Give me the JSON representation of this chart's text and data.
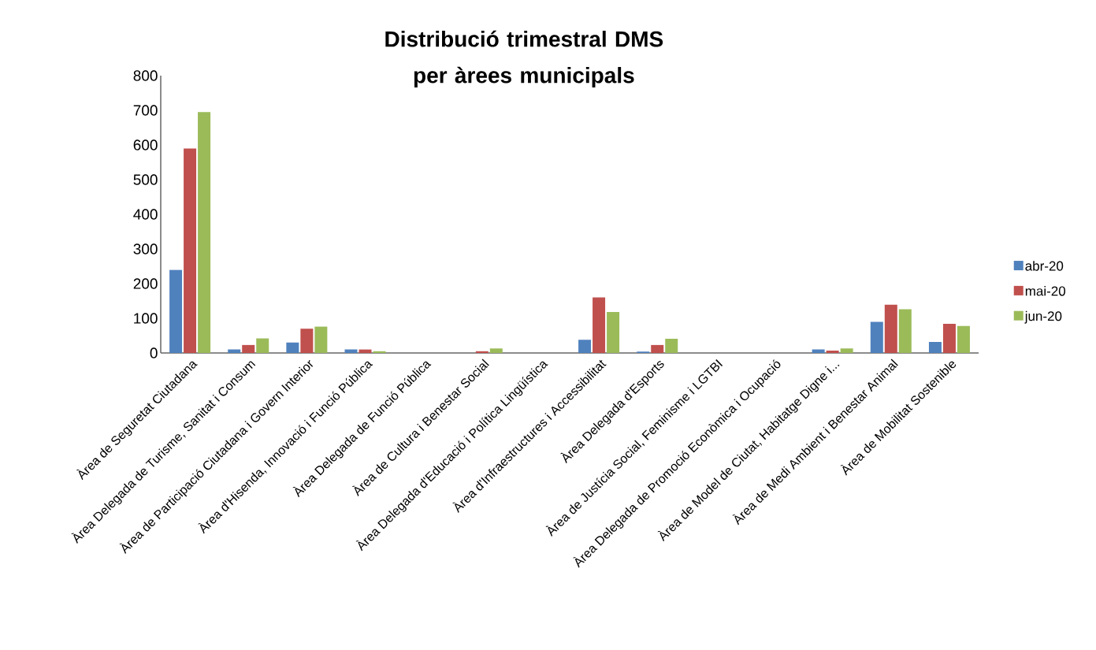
{
  "chart_data": {
    "type": "bar",
    "title": "Distribució trimestral DMS per àrees municipals",
    "categories": [
      "Àrea de Seguretat Ciutadana",
      "Àrea Delegada de Turisme, Sanitat i Consum",
      "Àrea de Participació Ciutadana i Govern Interior",
      "Àrea d'Hisenda, Innovació i Funció Pública",
      "Àrea Delegada de Funció Pública",
      "Àrea de Cultura i Benestar Social",
      "Àrea Delegada d'Educació i Política Lingüística",
      "Àrea d'Infraestructures i Accessibilitat",
      "Àrea Delegada d'Esports",
      "Àrea de Justícia Social, Feminisme i LGTBI",
      "Àrea Delegada de Promoció Econòmica i Ocupació",
      "Àrea de Model de Ciutat, Habitatge Digne i...",
      "Àrea de Medi Ambient i Benestar Animal",
      "Àrea de Mobilitat Sostenible"
    ],
    "series": [
      {
        "name": "abr-20",
        "color": "#4f81bd",
        "values": [
          240,
          10,
          30,
          10,
          0,
          0,
          0,
          38,
          4,
          0,
          0,
          10,
          90,
          32
        ]
      },
      {
        "name": "mai-20",
        "color": "#c0504d",
        "values": [
          590,
          23,
          70,
          10,
          0,
          5,
          0,
          160,
          23,
          0,
          0,
          7,
          139,
          84
        ]
      },
      {
        "name": "jun-20",
        "color": "#9bbb59",
        "values": [
          695,
          42,
          76,
          5,
          0,
          13,
          0,
          118,
          41,
          0,
          0,
          13,
          126,
          78
        ]
      }
    ],
    "ylim": [
      0,
      800
    ],
    "yticks": [
      0,
      100,
      200,
      300,
      400,
      500,
      600,
      700,
      800
    ],
    "grid": false,
    "legend": "right"
  }
}
